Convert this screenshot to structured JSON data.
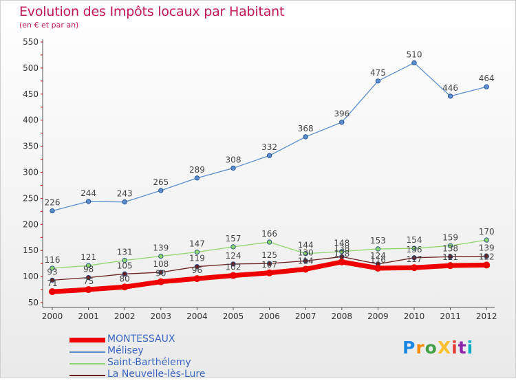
{
  "header": {
    "title": "Evolution des Impôts locaux par Habitant",
    "subtitle": "(en € et par an)"
  },
  "logo": {
    "text": "ProXiti",
    "letter_colors": [
      "#1e88e5",
      "#fb8c00",
      "#43a047",
      "#fbc02d",
      "#e53935",
      "#8e24aa",
      "#00acc1"
    ]
  },
  "chart_data": {
    "type": "line",
    "categories": [
      "2000",
      "2001",
      "2002",
      "2003",
      "2004",
      "2005",
      "2006",
      "2007",
      "2008",
      "2009",
      "2010",
      "2011",
      "2012"
    ],
    "ylim": [
      50,
      550
    ],
    "y_ticks": [
      50,
      100,
      150,
      200,
      250,
      300,
      350,
      400,
      450,
      500,
      550
    ],
    "grid": false,
    "legend_position": "bottom-left",
    "series": [
      {
        "name": "MONTESSAUX",
        "color": "#ee0000",
        "line_width": 7,
        "values": [
          71,
          75,
          80,
          90,
          96,
          102,
          107,
          114,
          128,
          116,
          117,
          121,
          122
        ]
      },
      {
        "name": "Mélisey",
        "color": "#5b8fd0",
        "line_width": 1.3,
        "values": [
          226,
          244,
          243,
          265,
          289,
          308,
          332,
          368,
          396,
          475,
          510,
          446,
          464
        ]
      },
      {
        "name": "Saint-Barthélemy",
        "color": "#8ed66b",
        "line_width": 1.3,
        "values": [
          116,
          121,
          131,
          139,
          147,
          157,
          166,
          144,
          148,
          153,
          154,
          159,
          170
        ]
      },
      {
        "name": "La Neuvelle-lès-Lure",
        "color": "#6b2020",
        "line_width": 1.3,
        "values": [
          93,
          98,
          105,
          108,
          119,
          124,
          125,
          130,
          138,
          124,
          136,
          138,
          139
        ]
      }
    ]
  }
}
